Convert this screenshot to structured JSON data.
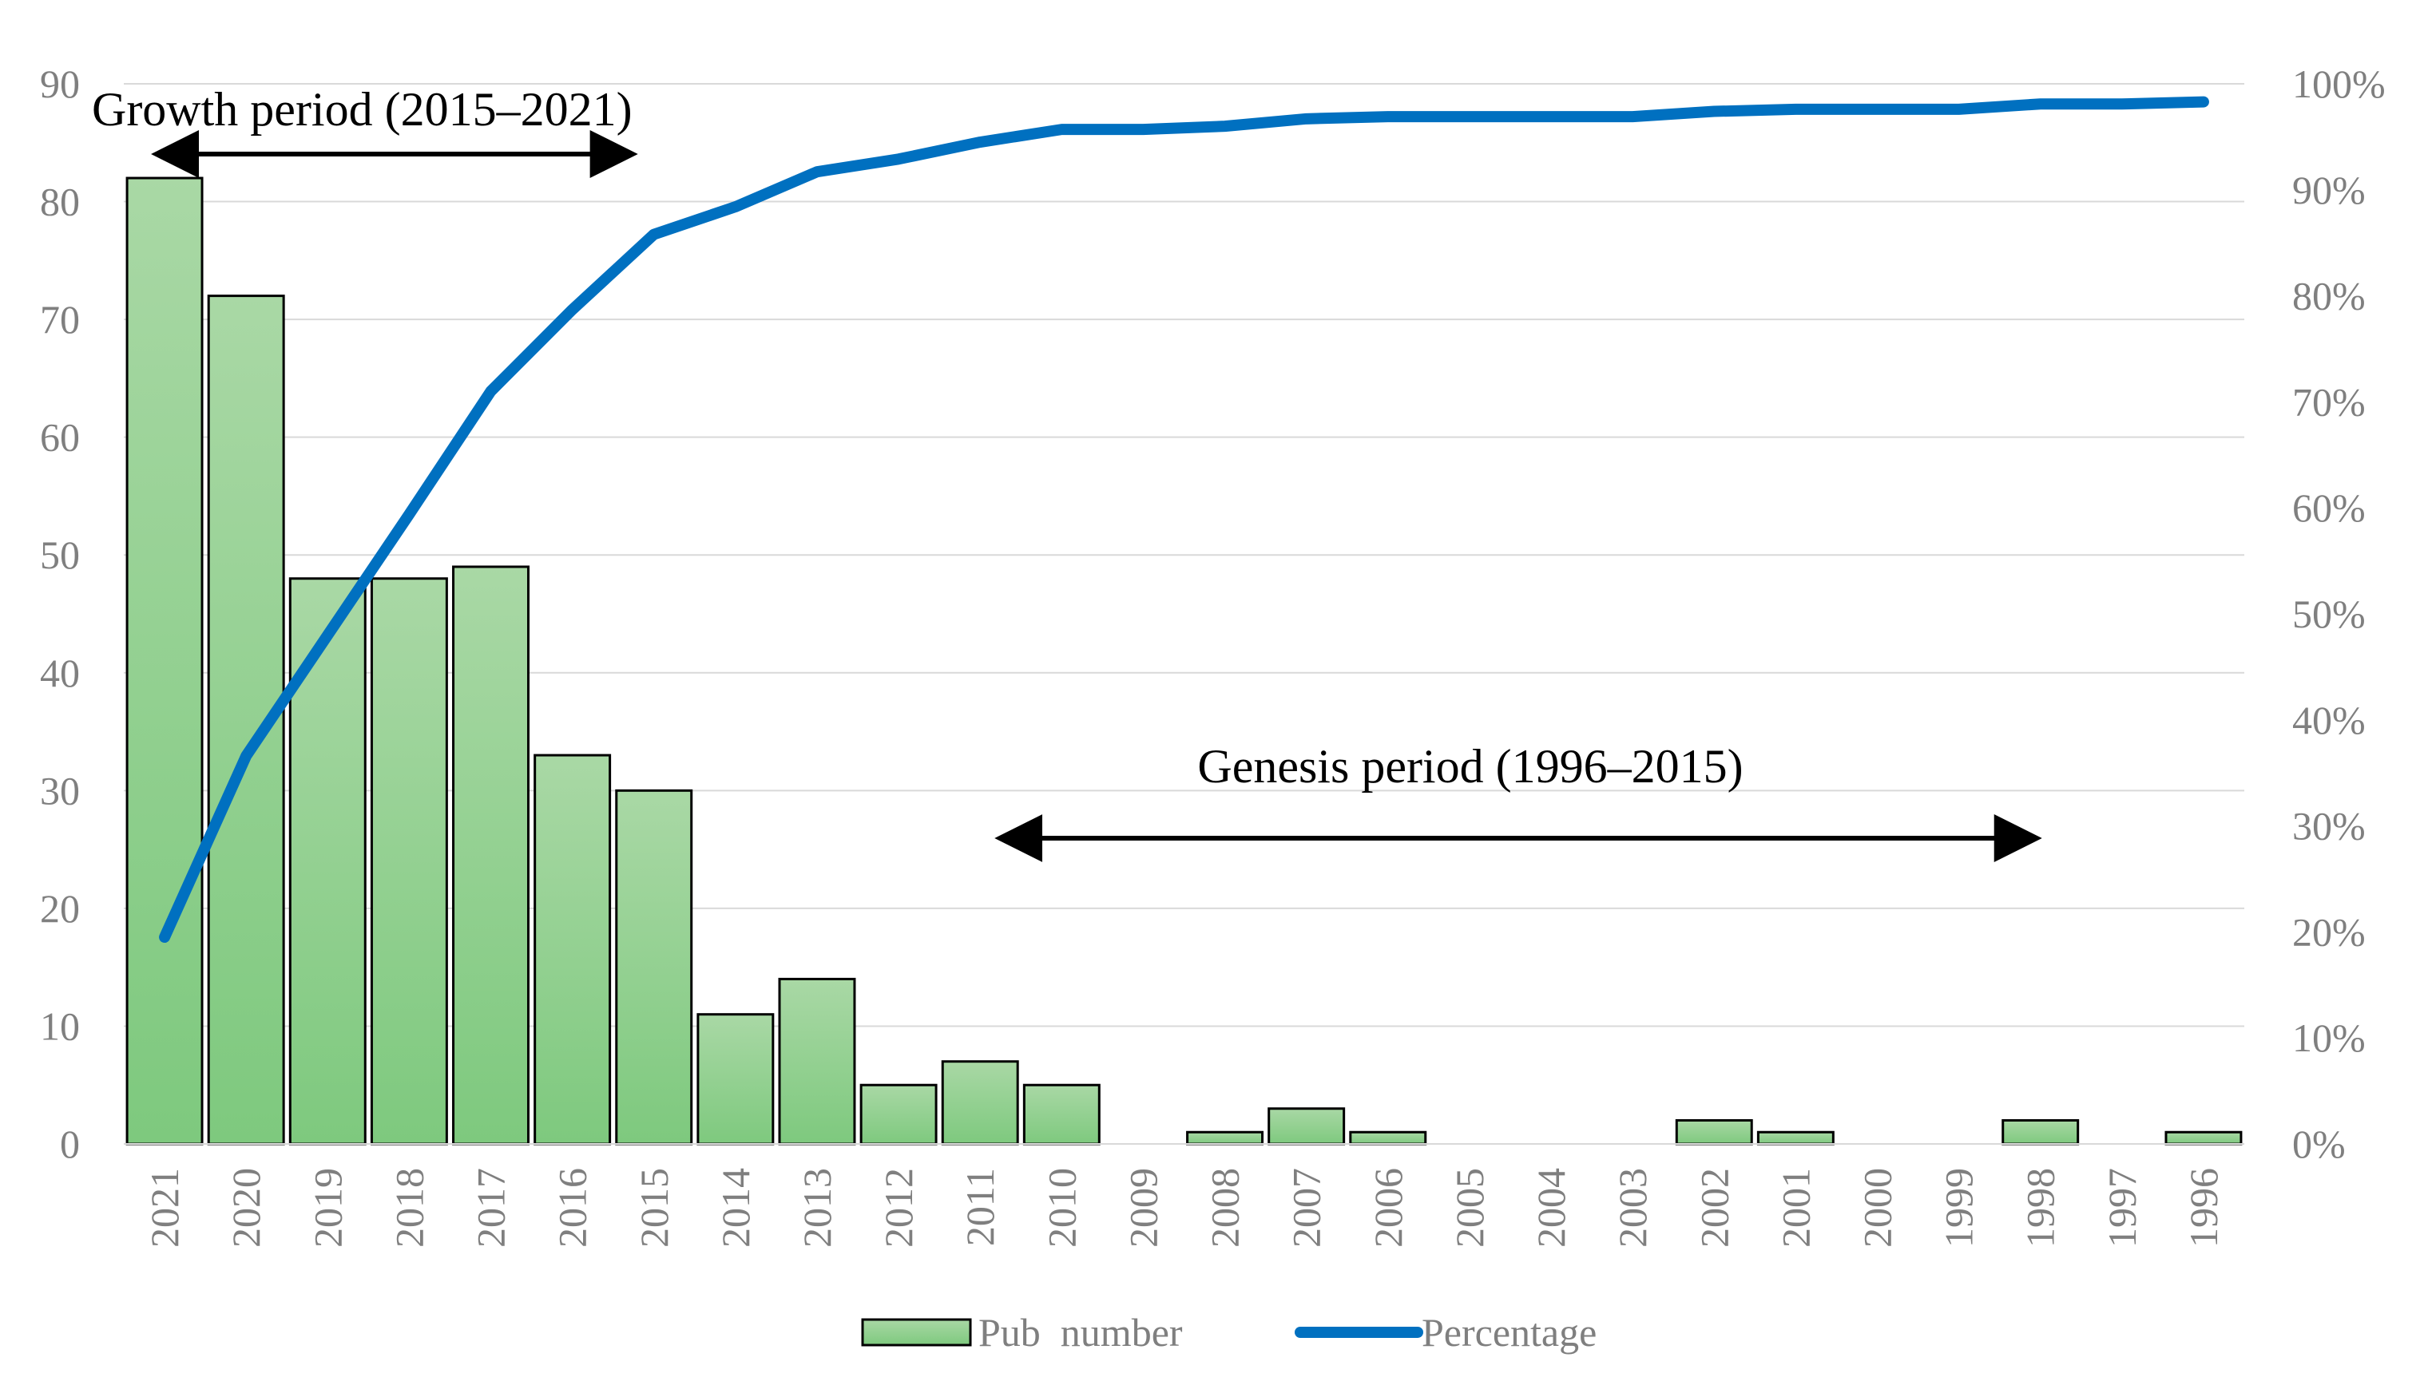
{
  "chart_data": {
    "type": "bar",
    "categories": [
      "2021",
      "2020",
      "2019",
      "2018",
      "2017",
      "2016",
      "2015",
      "2014",
      "2013",
      "2012",
      "2011",
      "2010",
      "2009",
      "2008",
      "2007",
      "2006",
      "2005",
      "2004",
      "2003",
      "2002",
      "2001",
      "2000",
      "1999",
      "1998",
      "1997",
      "1996"
    ],
    "series": [
      {
        "name": "Pub  number",
        "type": "bar",
        "axis": "left",
        "color": "#8fd090",
        "values": [
          82,
          72,
          48,
          48,
          49,
          33,
          30,
          11,
          14,
          5,
          7,
          5,
          0,
          1,
          3,
          1,
          0,
          0,
          0,
          2,
          1,
          0,
          0,
          2,
          0,
          1
        ]
      },
      {
        "name": "Percentage",
        "type": "line",
        "axis": "right",
        "color": "#0070c0",
        "values": [
          0.195,
          0.366,
          0.48,
          0.594,
          0.71,
          0.787,
          0.858,
          0.884,
          0.917,
          0.929,
          0.945,
          0.957,
          0.957,
          0.96,
          0.967,
          0.969,
          0.969,
          0.969,
          0.969,
          0.974,
          0.976,
          0.976,
          0.976,
          0.981,
          0.981,
          0.983
        ]
      }
    ],
    "y_left": {
      "ylim": [
        0,
        90
      ],
      "ticks": [
        0,
        10,
        20,
        30,
        40,
        50,
        60,
        70,
        80,
        90
      ],
      "tick_labels": [
        "0",
        "10",
        "20",
        "30",
        "40",
        "50",
        "60",
        "70",
        "80",
        "90"
      ]
    },
    "y_right": {
      "ylim": [
        0,
        1
      ],
      "ticks": [
        0,
        0.1,
        0.2,
        0.3,
        0.4,
        0.5,
        0.6,
        0.7,
        0.8,
        0.9,
        1.0
      ],
      "tick_labels": [
        "0%",
        "10%",
        "20%",
        "30%",
        "40%",
        "50%",
        "60%",
        "70%",
        "80%",
        "90%",
        "100%"
      ]
    },
    "grid": true,
    "legend": {
      "placement": "bottom-center",
      "entries": [
        "Pub  number",
        "Percentage"
      ]
    },
    "annotations": [
      {
        "text": "Growth period (2015–2021)",
        "from": "2021",
        "to": "2016"
      },
      {
        "text": "Genesis period (1996–2015)",
        "from": "2011",
        "to": "1998"
      }
    ]
  },
  "colors": {
    "bar_fill_top": "#a9d8a5",
    "bar_fill_bottom": "#7ec97e",
    "bar_stroke": "#000000",
    "line": "#0070c0",
    "grid": "#d9d9d9",
    "tick_text": "#7f7f7f",
    "annotation_text": "#000000"
  }
}
